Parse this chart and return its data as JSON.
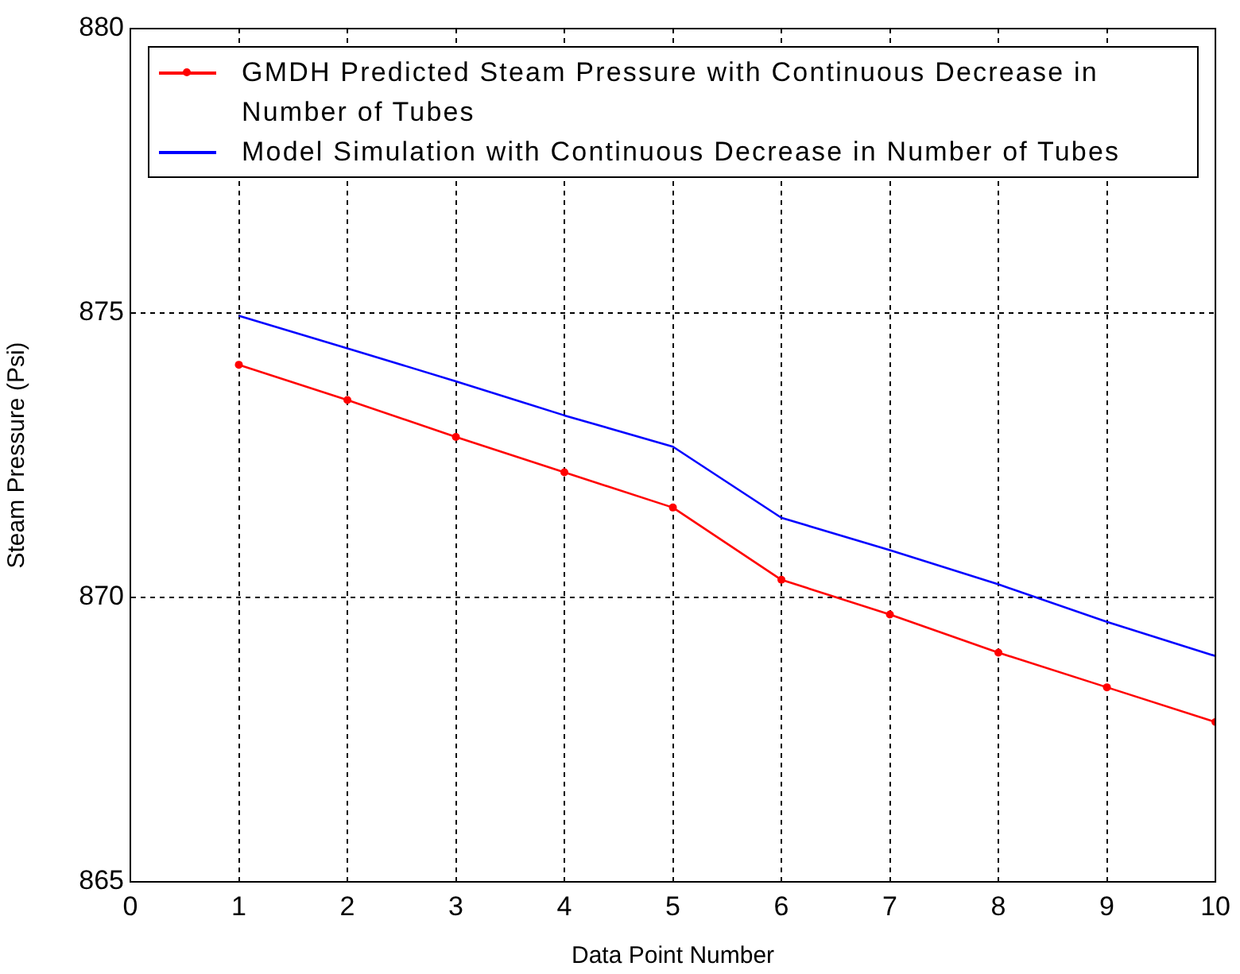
{
  "chart_data": {
    "type": "line",
    "xlabel": "Data Point Number",
    "ylabel": "Steam Pressure (Psi)",
    "x": [
      1,
      2,
      3,
      4,
      5,
      6,
      7,
      8,
      9,
      10
    ],
    "xlim": [
      0,
      10
    ],
    "xticks": [
      0,
      1,
      2,
      3,
      4,
      5,
      6,
      7,
      8,
      9,
      10
    ],
    "ylim": [
      865,
      880
    ],
    "yticks": [
      865,
      870,
      875,
      880
    ],
    "grid": true,
    "legend": "top",
    "line_style": "solid",
    "series": [
      {
        "name": "GMDH Predicted Steam Pressure with Continuous Decrease in Number of Tubes",
        "color": "#ff0000",
        "marker": "circle",
        "values": [
          874.09,
          873.47,
          872.82,
          872.2,
          871.58,
          870.31,
          869.7,
          869.03,
          868.42,
          867.81
        ]
      },
      {
        "name": "Model Simulation with Continuous Decrease in Number of Tubes",
        "color": "#0000ff",
        "marker": "none",
        "values": [
          874.95,
          874.38,
          873.8,
          873.2,
          872.65,
          871.4,
          870.83,
          870.23,
          869.57,
          868.97
        ]
      }
    ]
  }
}
